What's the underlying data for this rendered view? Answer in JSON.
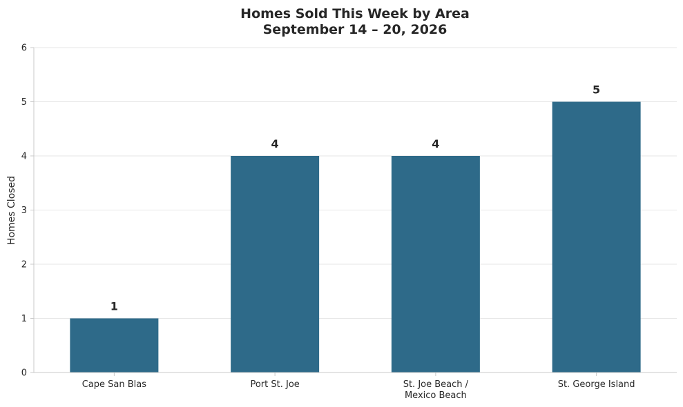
{
  "chart_data": {
    "type": "bar",
    "title_lines": [
      "Homes Sold This Week by Area",
      "September 14 – 20, 2026"
    ],
    "xlabel": "",
    "ylabel": "Homes Closed",
    "categories": [
      [
        "Cape San Blas"
      ],
      [
        "Port St. Joe"
      ],
      [
        "St. Joe Beach /",
        "Mexico Beach"
      ],
      [
        "St. George Island"
      ]
    ],
    "values": [
      1,
      4,
      4,
      5
    ],
    "data_labels": [
      "1",
      "4",
      "4",
      "5"
    ],
    "ylim": [
      0,
      6
    ],
    "yticks": [
      "0",
      "1",
      "2",
      "3",
      "4",
      "5",
      "6"
    ],
    "grid": "horizontal",
    "legend": "none",
    "bar_color": "#2e6a89",
    "grid_color": "#e6e6e6",
    "axis_color": "#c8c8c8",
    "text_color": "#262626"
  }
}
